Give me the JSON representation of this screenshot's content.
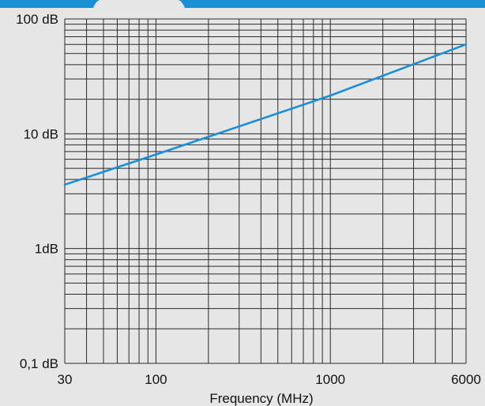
{
  "chart_data": {
    "type": "line",
    "x_scale": "log",
    "y_scale": "log",
    "xlim": [
      30,
      6000
    ],
    "ylim": [
      0.1,
      100
    ],
    "xlabel": "Frequency (MHz)",
    "ylabel": "",
    "grid": true,
    "x_ticks": [
      {
        "value": 30,
        "label": "30"
      },
      {
        "value": 100,
        "label": "100"
      },
      {
        "value": 1000,
        "label": "1000"
      },
      {
        "value": 6000,
        "label": "6000"
      }
    ],
    "y_ticks": [
      {
        "value": 100,
        "label": "100 dB"
      },
      {
        "value": 10,
        "label": "10 dB"
      },
      {
        "value": 1,
        "label": "1dB"
      },
      {
        "value": 0.1,
        "label": "0,1 dB"
      }
    ],
    "series": [
      {
        "color": "#1a8fd6",
        "x": [
          30,
          100,
          1000,
          6000
        ],
        "y": [
          3.6,
          6.6,
          21.5,
          60
        ]
      }
    ]
  },
  "colors": {
    "background": "#e6e6e6",
    "grid": "#2a2a2a",
    "header_band": "#1a8fd6",
    "line": "#1a8fd6"
  }
}
